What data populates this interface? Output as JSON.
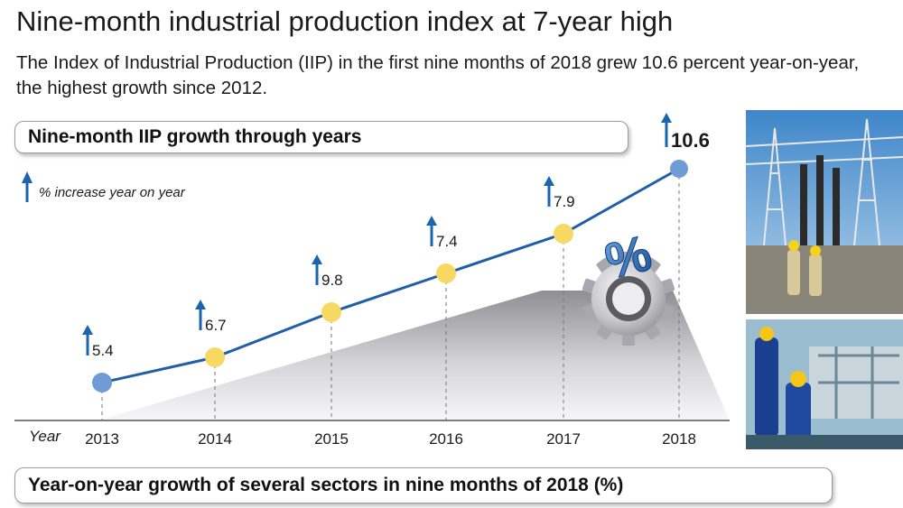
{
  "header": {
    "title": "Nine-month industrial production index at 7-year high",
    "subtitle": "The Index of Industrial Production (IIP) in the first nine months of 2018 grew 10.6 percent year-on-year, the highest growth since 2012."
  },
  "sections": {
    "top_title": "Nine-month IIP growth through years",
    "bottom_title": "Year-on-year growth of several sectors in nine months of 2018  (%)"
  },
  "chart_data": {
    "type": "line",
    "x": [
      "2013",
      "2014",
      "2015",
      "2016",
      "2017",
      "2018"
    ],
    "values": [
      5.4,
      6.7,
      9.8,
      7.4,
      7.9,
      10.6
    ],
    "value_labels": [
      "5.4",
      "6.7",
      "9.8",
      "7.4",
      "7.9",
      "10.6"
    ],
    "xlabel": "Year",
    "legend": "% increase year on year",
    "legend_placement": "top-left",
    "grid": false,
    "colors": {
      "line": "#1f5ea8",
      "arrow": "#1a64b0",
      "point_default": "#f6d863",
      "point_highlight": "#6f9bd6"
    }
  },
  "decorations": {
    "percent_symbol": "%",
    "icons": [
      "gear-icon",
      "percent-icon",
      "up-arrow-icon"
    ]
  },
  "photos": {
    "top": "power-substation-photo",
    "bottom": "factory-workers-photo"
  }
}
